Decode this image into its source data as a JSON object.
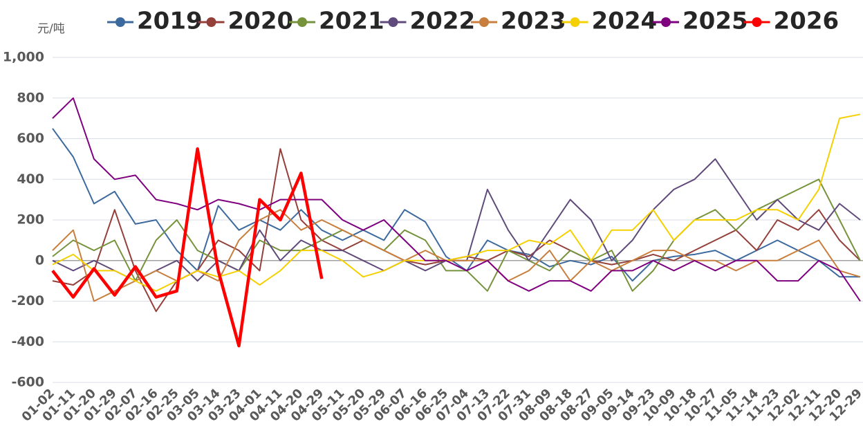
{
  "chart_data": {
    "type": "line",
    "unit_label": "元/吨",
    "categories": [
      "01-02",
      "01-11",
      "01-20",
      "01-29",
      "02-07",
      "02-16",
      "02-25",
      "03-05",
      "03-14",
      "03-23",
      "04-01",
      "04-11",
      "04-20",
      "04-29",
      "05-11",
      "05-20",
      "05-29",
      "06-07",
      "06-16",
      "06-25",
      "07-04",
      "07-13",
      "07-22",
      "07-31",
      "08-09",
      "08-18",
      "08-27",
      "09-05",
      "09-14",
      "09-23",
      "10-09",
      "10-18",
      "10-27",
      "11-05",
      "11-14",
      "11-23",
      "12-02",
      "12-11",
      "12-20",
      "12-29"
    ],
    "ylim": [
      -600,
      1000
    ],
    "yticks": [
      -600,
      -400,
      -200,
      0,
      200,
      400,
      600,
      800,
      {
        "value": 1000,
        "label": "1,000"
      }
    ],
    "grid": true,
    "series": [
      {
        "name": "2019",
        "color": "#3d6a9e",
        "values": [
          650,
          510,
          280,
          340,
          180,
          200,
          50,
          -50,
          270,
          150,
          200,
          150,
          250,
          150,
          100,
          150,
          100,
          250,
          190,
          20,
          -50,
          100,
          50,
          30,
          -30,
          0,
          -20,
          20,
          -100,
          0,
          20,
          30,
          50,
          0,
          50,
          100,
          50,
          0,
          -80,
          -80
        ]
      },
      {
        "name": "2020",
        "color": "#943f3a",
        "values": [
          -100,
          -120,
          -50,
          250,
          -50,
          -250,
          -100,
          -50,
          100,
          50,
          -50,
          550,
          200,
          100,
          50,
          100,
          50,
          0,
          -20,
          0,
          20,
          0,
          50,
          20,
          100,
          50,
          0,
          -20,
          0,
          30,
          0,
          50,
          100,
          150,
          50,
          200,
          150,
          250,
          100,
          0
        ]
      },
      {
        "name": "2021",
        "color": "#76933c",
        "values": [
          20,
          100,
          50,
          100,
          -100,
          100,
          200,
          50,
          0,
          -50,
          100,
          50,
          50,
          100,
          150,
          100,
          50,
          150,
          100,
          -50,
          -50,
          -150,
          50,
          0,
          -50,
          50,
          0,
          50,
          -150,
          -50,
          100,
          200,
          250,
          150,
          250,
          300,
          350,
          400,
          200,
          0
        ]
      },
      {
        "name": "2022",
        "color": "#604a7b",
        "values": [
          0,
          -50,
          0,
          -50,
          -100,
          -50,
          0,
          -100,
          0,
          -50,
          150,
          0,
          100,
          50,
          50,
          0,
          -50,
          0,
          -50,
          0,
          0,
          350,
          150,
          0,
          150,
          300,
          200,
          0,
          100,
          250,
          350,
          400,
          500,
          350,
          200,
          300,
          200,
          150,
          280,
          200
        ]
      },
      {
        "name": "2023",
        "color": "#c87e3c",
        "values": [
          50,
          150,
          -200,
          -150,
          -100,
          -50,
          -100,
          -50,
          -100,
          100,
          200,
          250,
          150,
          200,
          150,
          100,
          50,
          0,
          50,
          0,
          0,
          0,
          -100,
          -50,
          50,
          -100,
          0,
          -50,
          0,
          50,
          50,
          0,
          0,
          -50,
          0,
          0,
          50,
          100,
          -50,
          -80
        ]
      },
      {
        "name": "2024",
        "color": "#f5d000",
        "values": [
          -20,
          30,
          -50,
          -50,
          -100,
          -150,
          -100,
          -50,
          -80,
          -50,
          -120,
          -50,
          50,
          50,
          0,
          -80,
          -50,
          0,
          0,
          0,
          20,
          50,
          50,
          100,
          80,
          150,
          0,
          150,
          150,
          250,
          100,
          200,
          200,
          200,
          250,
          250,
          200,
          350,
          700,
          720
        ]
      },
      {
        "name": "2025",
        "color": "#7f007f",
        "values": [
          700,
          800,
          500,
          400,
          420,
          300,
          280,
          250,
          300,
          280,
          250,
          300,
          300,
          300,
          200,
          150,
          200,
          100,
          0,
          0,
          -50,
          0,
          -100,
          -150,
          -100,
          -100,
          -150,
          -50,
          -50,
          0,
          -50,
          0,
          -50,
          0,
          0,
          -100,
          -100,
          0,
          -50,
          -200
        ]
      },
      {
        "name": "2026",
        "color": "#ff0000",
        "values": [
          -50,
          -180,
          -40,
          -170,
          -30,
          -180,
          -150,
          550,
          -50,
          -420,
          300,
          200,
          430,
          -90,
          null,
          null,
          null,
          null,
          null,
          null,
          null,
          null,
          null,
          null,
          null,
          null,
          null,
          null,
          null,
          null,
          null,
          null,
          null,
          null,
          null,
          null,
          null,
          null,
          null,
          null
        ]
      }
    ]
  }
}
